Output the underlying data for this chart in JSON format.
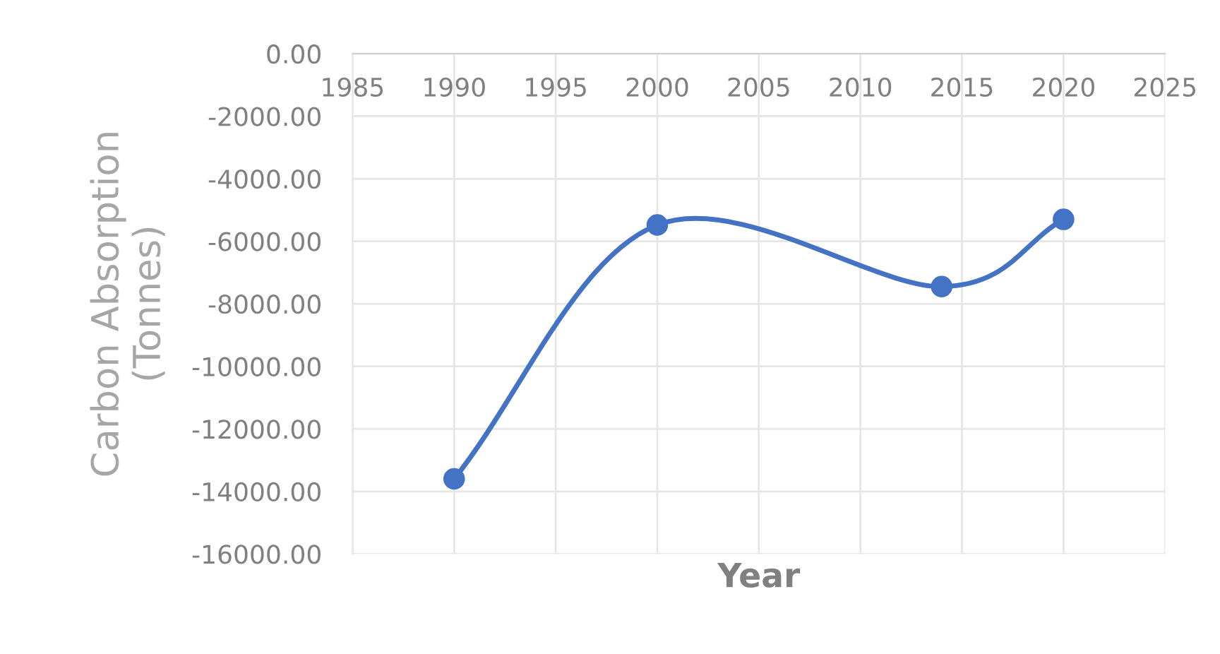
{
  "chart_data": {
    "type": "line",
    "xlabel": "Year",
    "ylabel": "Carbon Absorption\n(Tonnes)",
    "x": [
      1990,
      2000,
      2014,
      2020
    ],
    "series": [
      {
        "color": "#4472c4",
        "values": [
          -13600,
          -5480,
          -7450,
          -5300
        ]
      }
    ],
    "marker": "circle",
    "line_style": "solid",
    "grid": true,
    "xlim": [
      1985,
      2025
    ],
    "xticks": [
      1985,
      1990,
      1995,
      2000,
      2005,
      2010,
      2015,
      2020,
      2025
    ],
    "ylim": [
      -16000,
      0
    ],
    "yticks": [
      {
        "value": 0,
        "label": "0.00"
      },
      {
        "value": -2000,
        "label": "-2000.00"
      },
      {
        "value": -4000,
        "label": "-4000.00"
      },
      {
        "value": -6000,
        "label": "-6000.00"
      },
      {
        "value": -8000,
        "label": "-8000.00"
      },
      {
        "value": -10000,
        "label": "-10000.00"
      },
      {
        "value": -12000,
        "label": "-12000.00"
      },
      {
        "value": -14000,
        "label": "-14000.00"
      },
      {
        "value": -16000,
        "label": "-16000.00"
      }
    ]
  }
}
